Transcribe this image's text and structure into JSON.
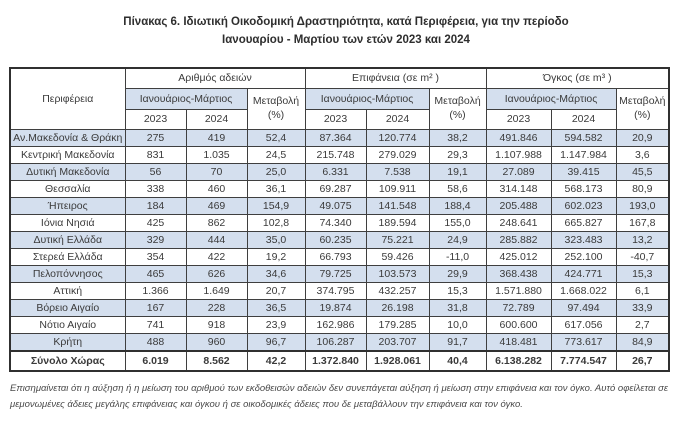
{
  "title": {
    "line1": "Πίνακας 6. Ιδιωτική  Οικοδομική Δραστηριότητα, κατά Περιφέρεια, για την περίοδο",
    "line2": "Ιανουαρίου - Μαρτίου των ετών 2023 και 2024"
  },
  "table": {
    "region_header": "Περιφέρεια",
    "groups": [
      {
        "label": "Αριθμός αδειών"
      },
      {
        "label": "Επιφάνεια (σε m² )"
      },
      {
        "label": "Όγκος (σε m³ )"
      }
    ],
    "period_header": "Ιανουάριος-Μάρτιος",
    "change_header_line1": "Μεταβολή",
    "change_header_line2": "(%)",
    "year_headers": [
      "2023",
      "2024"
    ],
    "rows": [
      {
        "region": "Αν.Μακεδονία & Θράκη",
        "values": [
          "275",
          "419",
          "52,4",
          "87.364",
          "120.774",
          "38,2",
          "491.846",
          "594.582",
          "20,9"
        ]
      },
      {
        "region": "Κεντρική Μακεδονία",
        "values": [
          "831",
          "1.035",
          "24,5",
          "215.748",
          "279.029",
          "29,3",
          "1.107.988",
          "1.147.984",
          "3,6"
        ]
      },
      {
        "region": "Δυτική Μακεδονία",
        "values": [
          "56",
          "70",
          "25,0",
          "6.331",
          "7.538",
          "19,1",
          "27.089",
          "39.415",
          "45,5"
        ]
      },
      {
        "region": "Θεσσαλία",
        "values": [
          "338",
          "460",
          "36,1",
          "69.287",
          "109.911",
          "58,6",
          "314.148",
          "568.173",
          "80,9"
        ]
      },
      {
        "region": "Ήπειρος",
        "values": [
          "184",
          "469",
          "154,9",
          "49.075",
          "141.548",
          "188,4",
          "205.488",
          "602.023",
          "193,0"
        ]
      },
      {
        "region": "Ιόνια Νησιά",
        "values": [
          "425",
          "862",
          "102,8",
          "74.340",
          "189.594",
          "155,0",
          "248.641",
          "665.827",
          "167,8"
        ]
      },
      {
        "region": "Δυτική Ελλάδα",
        "values": [
          "329",
          "444",
          "35,0",
          "60.235",
          "75.221",
          "24,9",
          "285.882",
          "323.483",
          "13,2"
        ]
      },
      {
        "region": "Στερεά Ελλάδα",
        "values": [
          "354",
          "422",
          "19,2",
          "66.793",
          "59.426",
          "-11,0",
          "425.012",
          "252.100",
          "-40,7"
        ]
      },
      {
        "region": "Πελοπόννησος",
        "values": [
          "465",
          "626",
          "34,6",
          "79.725",
          "103.573",
          "29,9",
          "368.438",
          "424.771",
          "15,3"
        ]
      },
      {
        "region": "Αττική",
        "values": [
          "1.366",
          "1.649",
          "20,7",
          "374.795",
          "432.257",
          "15,3",
          "1.571.880",
          "1.668.022",
          "6,1"
        ]
      },
      {
        "region": "Βόρειο Αιγαίο",
        "values": [
          "167",
          "228",
          "36,5",
          "19.874",
          "26.198",
          "31,8",
          "72.789",
          "97.494",
          "33,9"
        ]
      },
      {
        "region": "Νότιο Αιγαίο",
        "values": [
          "741",
          "918",
          "23,9",
          "162.986",
          "179.285",
          "10,0",
          "600.600",
          "617.056",
          "2,7"
        ]
      },
      {
        "region": "Κρήτη",
        "values": [
          "488",
          "960",
          "96,7",
          "106.287",
          "203.707",
          "91,7",
          "418.481",
          "773.617",
          "84,9"
        ]
      }
    ],
    "total_row": {
      "region": "Σύνολο Χώρας",
      "values": [
        "6.019",
        "8.562",
        "42,2",
        "1.372.840",
        "1.928.061",
        "40,4",
        "6.138.282",
        "7.774.547",
        "26,7"
      ]
    }
  },
  "footnote": "Επισημαίνεται ότι η αύξηση ή η μείωση του αριθμού των εκδοθεισών αδειών δεν συνεπάγεται αύξηση ή μείωση στην επιφάνεια και τον όγκο. Αυτό οφείλεται σε μεμονωμένες άδειες μεγάλης επιφάνειας και όγκου ή σε οικοδομικές άδειες που δε μεταβάλλουν την επιφάνεια και τον όγκο.",
  "colors": {
    "row_alt_blue": "#d4dfee",
    "border": "#3f3f3f",
    "text": "#3a3a3a"
  }
}
